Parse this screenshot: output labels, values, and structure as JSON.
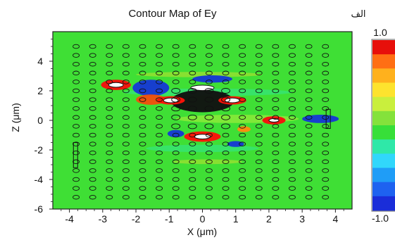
{
  "chart_data": {
    "type": "heatmap",
    "title": "Contour Map of Ey",
    "corner_label": "الف",
    "xlabel": "X (μm)",
    "ylabel": "Z (μm)",
    "xlim": [
      -4.5,
      4.5
    ],
    "ylim": [
      -6,
      6
    ],
    "x_ticks": [
      -4,
      -3,
      -2,
      -1,
      0,
      1,
      2,
      3,
      4
    ],
    "x_tick_labels": [
      "-4",
      "-3",
      "-2",
      "-1",
      "0",
      "1",
      "2",
      "3",
      "4"
    ],
    "y_ticks": [
      -6,
      -4,
      -2,
      0,
      2,
      4
    ],
    "y_tick_labels": [
      "-6",
      "-4",
      "-2",
      "0",
      "2",
      "4"
    ],
    "grid": false,
    "colorbar": {
      "min_label": "-1.0",
      "max_label": "1.0",
      "colors": [
        "#1a2dd9",
        "#1e62f0",
        "#1f9df7",
        "#31d7fb",
        "#2fe8a8",
        "#37df39",
        "#84e23b",
        "#c9ef3d",
        "#fde32e",
        "#ffb11d",
        "#ff6f14",
        "#e70f0b"
      ]
    },
    "hole_columns_x": [
      -3.8,
      -3.3,
      -2.8,
      -2.3,
      -1.8,
      -1.3,
      -0.8,
      -0.3,
      0.2,
      0.7,
      1.2,
      1.7,
      2.2,
      2.7,
      3.2,
      3.7
    ],
    "hole_rows_z": [
      5.0,
      4.4,
      3.8,
      3.2,
      2.6,
      2.0,
      1.4,
      0.8,
      0.2,
      -0.4,
      -1.0,
      -1.6,
      -2.2,
      -2.8,
      -3.4,
      -4.0,
      -4.6,
      -5.2
    ],
    "field_blobs": [
      {
        "x": -2.6,
        "z": 2.4,
        "rx": 0.45,
        "rz": 0.35,
        "color": "#f70e0b"
      },
      {
        "x": -1.55,
        "z": 2.2,
        "rx": 0.55,
        "rz": 0.55,
        "color": "#1638d4"
      },
      {
        "x": -1.55,
        "z": 1.4,
        "rx": 0.45,
        "rz": 0.35,
        "color": "#f24e0d"
      },
      {
        "x": 0.0,
        "z": 1.3,
        "rx": 0.95,
        "rz": 0.75,
        "color": "#111111"
      },
      {
        "x": -0.95,
        "z": 1.35,
        "rx": 0.42,
        "rz": 0.28,
        "color": "#ff1208"
      },
      {
        "x": 0.9,
        "z": 1.35,
        "rx": 0.42,
        "rz": 0.28,
        "color": "#ff1208"
      },
      {
        "x": 0.0,
        "z": -1.1,
        "rx": 0.55,
        "rz": 0.35,
        "color": "#ff1208"
      },
      {
        "x": 0.3,
        "z": 2.8,
        "rx": 0.6,
        "rz": 0.25,
        "color": "#1638d4"
      },
      {
        "x": 2.15,
        "z": 0.0,
        "rx": 0.35,
        "rz": 0.28,
        "color": "#f70e0b"
      },
      {
        "x": 3.55,
        "z": 0.1,
        "rx": 0.55,
        "rz": 0.28,
        "color": "#1638d4"
      },
      {
        "x": 1.25,
        "z": -0.6,
        "rx": 0.2,
        "rz": 0.2,
        "color": "#ff8b10"
      },
      {
        "x": -0.8,
        "z": -0.9,
        "rx": 0.25,
        "rz": 0.25,
        "color": "#1638d4"
      },
      {
        "x": 1.0,
        "z": -1.6,
        "rx": 0.25,
        "rz": 0.2,
        "color": "#1638d4"
      }
    ],
    "white_regions": [
      {
        "x": -2.6,
        "z": 2.4,
        "rx": 0.22,
        "rz": 0.16
      },
      {
        "x": 0.0,
        "z": 2.2,
        "rx": 0.35,
        "rz": 0.18
      },
      {
        "x": -0.95,
        "z": 1.35,
        "rx": 0.22,
        "rz": 0.16
      },
      {
        "x": 0.9,
        "z": 1.35,
        "rx": 0.22,
        "rz": 0.16
      },
      {
        "x": 0.0,
        "z": -1.1,
        "rx": 0.24,
        "rz": 0.16
      },
      {
        "x": 2.15,
        "z": 0.0,
        "rx": 0.15,
        "rz": 0.12
      }
    ]
  }
}
